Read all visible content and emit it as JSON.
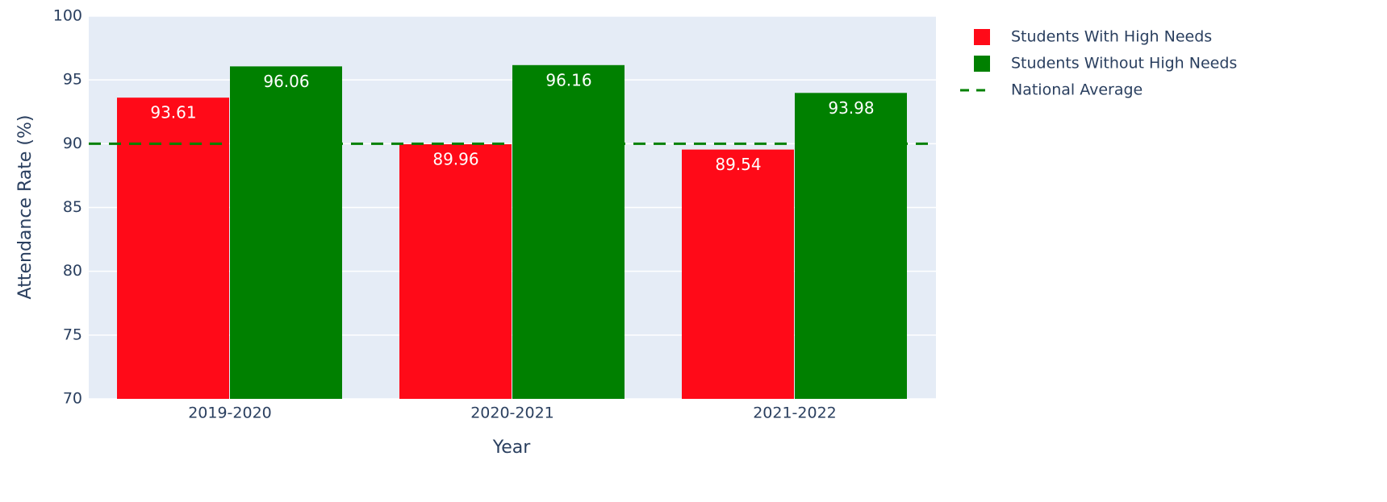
{
  "chart_data": {
    "type": "bar",
    "x_label": "Year",
    "y_label": "Attendance Rate (%)",
    "categories": [
      "2019-2020",
      "2020-2021",
      "2021-2022"
    ],
    "series": [
      {
        "name": "Students With High Needs",
        "color": "#ff0a18",
        "values": [
          93.61,
          89.96,
          89.54
        ]
      },
      {
        "name": "Students Without High Needs",
        "color": "#008000",
        "values": [
          96.06,
          96.16,
          93.98
        ]
      }
    ],
    "reference_line": {
      "name": "National Average",
      "value": 90,
      "color": "#008000",
      "dash": true
    },
    "ylim": [
      70,
      100
    ],
    "yticks": [
      70,
      75,
      80,
      85,
      90,
      95,
      100
    ],
    "grid": true,
    "legend": "right"
  }
}
